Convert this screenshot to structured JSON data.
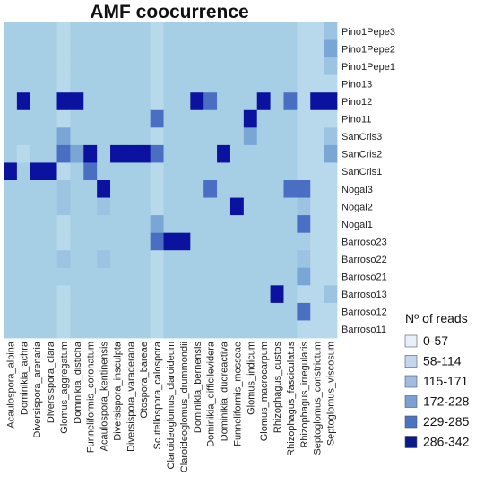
{
  "chart_data": {
    "type": "heatmap",
    "title": "AMF coocurrence",
    "columns": [
      "Acaulospora_alpina",
      "Dominikia_achra",
      "Diversispora_arenaria",
      "Diversispora_clara",
      "Glomus_aggregatum",
      "Dominikia_disticha",
      "Funneliformis_coronatum",
      "Acaulospora_kentinensis",
      "Diversispora_insculpta",
      "Diversispora_varaderana",
      "Otospora_bareae",
      "Scutellospora_calospora",
      "Claroideoglomus_claroideum",
      "Claroideoglomus_drummondii",
      "Dominikia_bernensis",
      "Dominikia_difficilevidera",
      "Dominikia_duoreactiva",
      "Funneliformis_mosseae",
      "Glomus_indicum",
      "Glomus_macrocarpum",
      "Rhizophagus_custos",
      "Rhizophagus_fasciculatus",
      "Rhizophagus_irregularis",
      "Septoglomus_constrictum",
      "Septoglomus_viscosum"
    ],
    "rows": [
      "Pino1Pepe3",
      "Pino1Pepe2",
      "Pino1Pepe1",
      "Pino13",
      "Pino12",
      "Pino11",
      "SanCris3",
      "SanCris2",
      "SanCris1",
      "Nogal3",
      "Nogal2",
      "Nogal1",
      "Barroso23",
      "Barroso22",
      "Barroso21",
      "Barroso13",
      "Barroso12",
      "Barroso11"
    ],
    "values": [
      [
        0,
        0,
        0,
        0,
        1,
        0,
        0,
        0,
        0,
        0,
        0,
        1,
        0,
        0,
        0,
        0,
        0,
        0,
        0,
        0,
        0,
        0,
        1,
        1,
        2
      ],
      [
        0,
        0,
        0,
        0,
        1,
        0,
        0,
        0,
        0,
        0,
        0,
        1,
        0,
        0,
        0,
        0,
        0,
        0,
        0,
        0,
        0,
        0,
        1,
        1,
        3
      ],
      [
        0,
        0,
        0,
        0,
        1,
        0,
        0,
        0,
        0,
        0,
        0,
        1,
        0,
        0,
        0,
        0,
        0,
        0,
        0,
        0,
        0,
        0,
        1,
        1,
        2
      ],
      [
        0,
        0,
        0,
        0,
        1,
        0,
        0,
        0,
        0,
        0,
        0,
        1,
        0,
        0,
        0,
        0,
        0,
        0,
        0,
        0,
        0,
        0,
        1,
        1,
        1
      ],
      [
        0,
        5,
        0,
        0,
        5,
        5,
        0,
        0,
        0,
        0,
        0,
        1,
        0,
        0,
        5,
        4,
        0,
        0,
        0,
        5,
        0,
        4,
        1,
        5,
        5
      ],
      [
        0,
        0,
        0,
        0,
        1,
        0,
        0,
        0,
        0,
        0,
        0,
        4,
        0,
        0,
        0,
        0,
        0,
        0,
        5,
        0,
        0,
        0,
        1,
        1,
        1
      ],
      [
        0,
        0,
        0,
        0,
        3,
        0,
        0,
        0,
        0,
        0,
        0,
        1,
        0,
        0,
        0,
        0,
        0,
        0,
        3,
        0,
        0,
        0,
        1,
        1,
        2
      ],
      [
        0,
        1,
        0,
        0,
        4,
        3,
        5,
        0,
        5,
        5,
        5,
        4,
        0,
        0,
        0,
        0,
        5,
        0,
        0,
        0,
        0,
        0,
        1,
        1,
        3
      ],
      [
        5,
        0,
        5,
        5,
        1,
        0,
        4,
        0,
        0,
        0,
        0,
        1,
        0,
        0,
        0,
        0,
        0,
        0,
        0,
        0,
        0,
        0,
        1,
        1,
        1
      ],
      [
        0,
        0,
        0,
        0,
        2,
        0,
        0,
        5,
        0,
        0,
        0,
        1,
        0,
        0,
        0,
        4,
        0,
        0,
        0,
        0,
        0,
        4,
        4,
        1,
        1
      ],
      [
        0,
        0,
        0,
        0,
        2,
        0,
        0,
        2,
        0,
        0,
        0,
        1,
        0,
        0,
        0,
        0,
        0,
        5,
        0,
        0,
        0,
        0,
        2,
        1,
        1
      ],
      [
        0,
        0,
        0,
        0,
        1,
        0,
        0,
        0,
        0,
        0,
        0,
        3,
        0,
        0,
        0,
        0,
        0,
        0,
        0,
        0,
        0,
        0,
        4,
        1,
        1
      ],
      [
        0,
        0,
        0,
        0,
        1,
        0,
        0,
        0,
        0,
        0,
        0,
        4,
        5,
        5,
        0,
        0,
        0,
        0,
        0,
        0,
        0,
        0,
        0,
        1,
        1
      ],
      [
        0,
        0,
        0,
        0,
        2,
        0,
        0,
        2,
        0,
        0,
        0,
        1,
        0,
        0,
        0,
        0,
        0,
        0,
        0,
        0,
        0,
        0,
        2,
        1,
        1
      ],
      [
        0,
        0,
        0,
        0,
        0,
        0,
        0,
        0,
        0,
        0,
        0,
        1,
        0,
        0,
        0,
        0,
        0,
        0,
        0,
        0,
        0,
        0,
        3,
        1,
        1
      ],
      [
        0,
        0,
        0,
        0,
        1,
        0,
        0,
        0,
        0,
        0,
        0,
        1,
        0,
        0,
        0,
        0,
        0,
        0,
        0,
        0,
        5,
        0,
        1,
        1,
        2
      ],
      [
        0,
        0,
        0,
        0,
        1,
        0,
        0,
        0,
        0,
        0,
        0,
        1,
        0,
        0,
        0,
        0,
        0,
        0,
        0,
        0,
        0,
        0,
        4,
        1,
        1
      ],
      [
        0,
        0,
        0,
        0,
        1,
        0,
        0,
        0,
        0,
        0,
        0,
        1,
        0,
        0,
        0,
        0,
        0,
        0,
        0,
        0,
        0,
        0,
        1,
        1,
        1
      ]
    ],
    "colors": [
      "#a6cfe6",
      "#b8d8ec",
      "#9dc3e3",
      "#7aa6d6",
      "#4a6fc2",
      "#0b129f"
    ],
    "legend": {
      "title": "Nº of reads",
      "placement": "right",
      "items": [
        "0-57",
        "58-114",
        "115-171",
        "172-228",
        "229-285",
        "286-342"
      ],
      "swatches": [
        "#e8f0fa",
        "#c4d6ee",
        "#a0bce2",
        "#7aa0d4",
        "#4a74c0",
        "#0b1a8a"
      ]
    }
  }
}
